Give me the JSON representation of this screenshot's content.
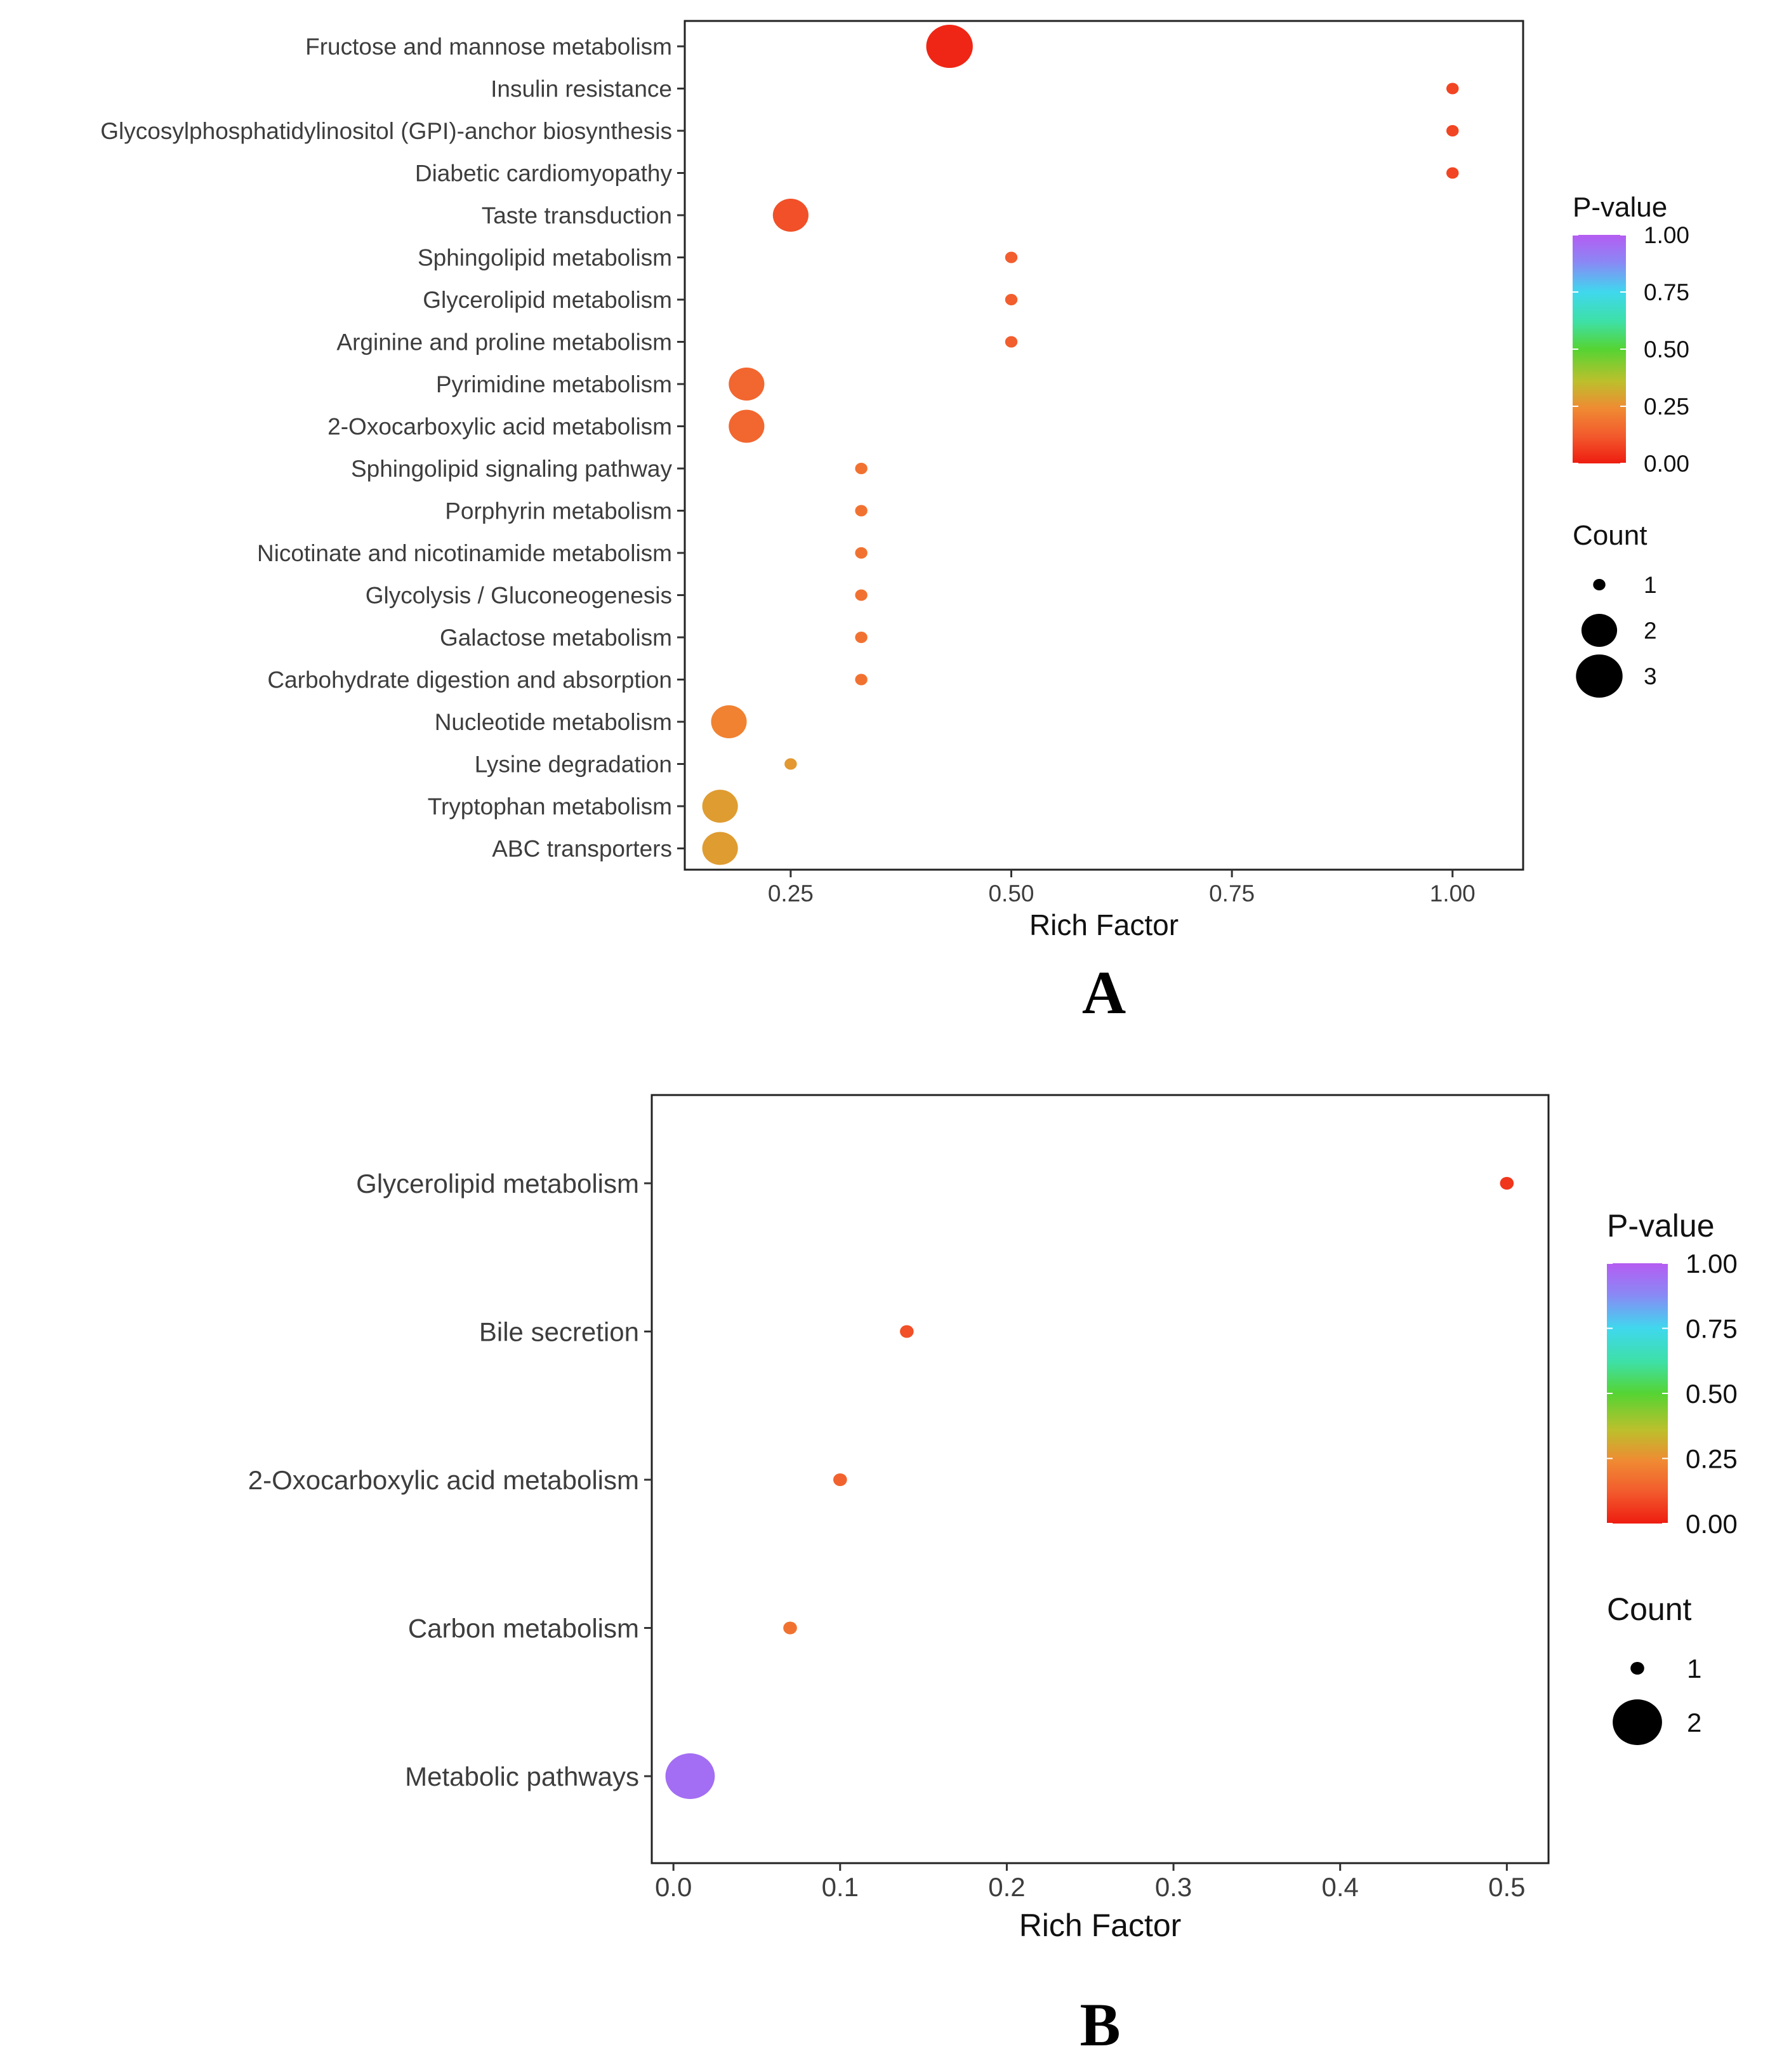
{
  "chart_data": [
    {
      "type": "scatter",
      "subtype": "bubble",
      "panel_label": "A",
      "xlabel": "Rich Factor",
      "ylabel": "",
      "xlim": [
        0.13,
        1.08
      ],
      "xticks": [
        "0.25",
        "0.50",
        "0.75",
        "1.00"
      ],
      "xtick_values": [
        0.25,
        0.5,
        0.75,
        1.0
      ],
      "grid": false,
      "legend": {
        "color_title": "P-value",
        "color_ticks": [
          "1.00",
          "0.75",
          "0.50",
          "0.25",
          "0.00"
        ],
        "color_tick_values": [
          1.0,
          0.75,
          0.5,
          0.25,
          0.0
        ],
        "size_title": "Count",
        "size_entries": [
          "1",
          "2",
          "3"
        ],
        "size_values": [
          1,
          2,
          3
        ],
        "position": "right"
      },
      "points": [
        {
          "pathway": "Fructose and mannose metabolism",
          "rich_factor": 0.43,
          "count": 3,
          "p_value": 0.02
        },
        {
          "pathway": "Insulin resistance",
          "rich_factor": 1.0,
          "count": 1,
          "p_value": 0.08
        },
        {
          "pathway": "Glycosylphosphatidylinositol (GPI)-anchor biosynthesis",
          "rich_factor": 1.0,
          "count": 1,
          "p_value": 0.08
        },
        {
          "pathway": "Diabetic cardiomyopathy",
          "rich_factor": 1.0,
          "count": 1,
          "p_value": 0.08
        },
        {
          "pathway": "Taste transduction",
          "rich_factor": 0.25,
          "count": 2,
          "p_value": 0.1
        },
        {
          "pathway": "Sphingolipid metabolism",
          "rich_factor": 0.5,
          "count": 1,
          "p_value": 0.13
        },
        {
          "pathway": "Glycerolipid metabolism",
          "rich_factor": 0.5,
          "count": 1,
          "p_value": 0.13
        },
        {
          "pathway": "Arginine and proline metabolism",
          "rich_factor": 0.5,
          "count": 1,
          "p_value": 0.13
        },
        {
          "pathway": "Pyrimidine metabolism",
          "rich_factor": 0.2,
          "count": 2,
          "p_value": 0.15
        },
        {
          "pathway": "2-Oxocarboxylic acid metabolism",
          "rich_factor": 0.2,
          "count": 2,
          "p_value": 0.15
        },
        {
          "pathway": "Sphingolipid signaling pathway",
          "rich_factor": 0.33,
          "count": 1,
          "p_value": 0.18
        },
        {
          "pathway": "Porphyrin metabolism",
          "rich_factor": 0.33,
          "count": 1,
          "p_value": 0.18
        },
        {
          "pathway": "Nicotinate and nicotinamide metabolism",
          "rich_factor": 0.33,
          "count": 1,
          "p_value": 0.18
        },
        {
          "pathway": "Glycolysis / Gluconeogenesis",
          "rich_factor": 0.33,
          "count": 1,
          "p_value": 0.18
        },
        {
          "pathway": "Galactose metabolism",
          "rich_factor": 0.33,
          "count": 1,
          "p_value": 0.18
        },
        {
          "pathway": "Carbohydrate digestion and absorption",
          "rich_factor": 0.33,
          "count": 1,
          "p_value": 0.18
        },
        {
          "pathway": "Nucleotide metabolism",
          "rich_factor": 0.18,
          "count": 2,
          "p_value": 0.22
        },
        {
          "pathway": "Lysine degradation",
          "rich_factor": 0.25,
          "count": 1,
          "p_value": 0.27
        },
        {
          "pathway": "Tryptophan metabolism",
          "rich_factor": 0.17,
          "count": 2,
          "p_value": 0.28
        },
        {
          "pathway": "ABC transporters",
          "rich_factor": 0.17,
          "count": 2,
          "p_value": 0.28
        }
      ]
    },
    {
      "type": "scatter",
      "subtype": "bubble",
      "panel_label": "B",
      "xlabel": "Rich Factor",
      "ylabel": "",
      "xlim": [
        -0.013,
        0.525
      ],
      "xticks": [
        "0.0",
        "0.1",
        "0.2",
        "0.3",
        "0.4",
        "0.5"
      ],
      "xtick_values": [
        0.0,
        0.1,
        0.2,
        0.3,
        0.4,
        0.5
      ],
      "grid": false,
      "legend": {
        "color_title": "P-value",
        "color_ticks": [
          "1.00",
          "0.75",
          "0.50",
          "0.25",
          "0.00"
        ],
        "color_tick_values": [
          1.0,
          0.75,
          0.5,
          0.25,
          0.0
        ],
        "size_title": "Count",
        "size_entries": [
          "1",
          "2"
        ],
        "size_values": [
          1,
          2
        ],
        "position": "right"
      },
      "points": [
        {
          "pathway": "Glycerolipid metabolism",
          "rich_factor": 0.5,
          "count": 1,
          "p_value": 0.05
        },
        {
          "pathway": "Bile secretion",
          "rich_factor": 0.14,
          "count": 1,
          "p_value": 0.1
        },
        {
          "pathway": "2-Oxocarboxylic acid metabolism",
          "rich_factor": 0.1,
          "count": 1,
          "p_value": 0.14
        },
        {
          "pathway": "Carbon metabolism",
          "rich_factor": 0.07,
          "count": 1,
          "p_value": 0.18
        },
        {
          "pathway": "Metabolic pathways",
          "rich_factor": 0.01,
          "count": 2,
          "p_value": 0.95
        }
      ]
    }
  ]
}
